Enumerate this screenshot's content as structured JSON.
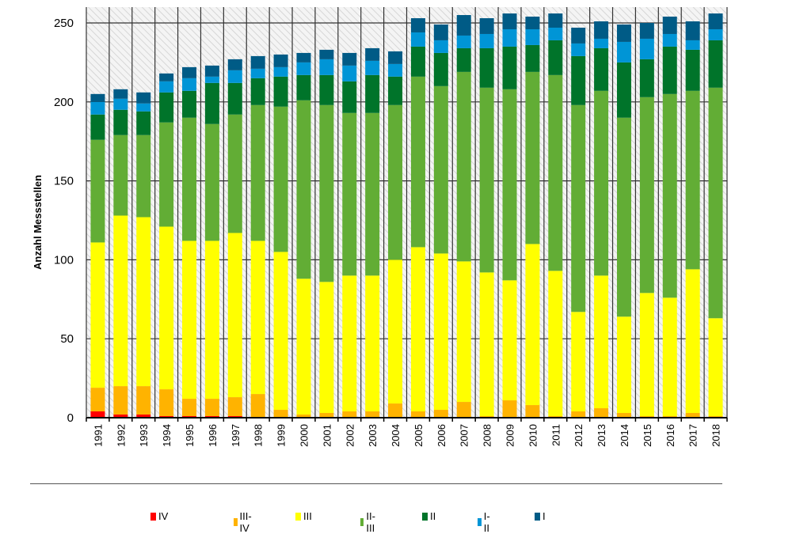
{
  "chart_data": {
    "type": "bar",
    "stacked": true,
    "title": "",
    "xlabel": "",
    "ylabel": "Anzahl Messstellen",
    "ylim": [
      0,
      260
    ],
    "yticks": [
      0,
      50,
      100,
      150,
      200,
      250
    ],
    "grid": true,
    "legend_position": "bottom",
    "categories": [
      "1991",
      "1992",
      "1993",
      "1994",
      "1995",
      "1996",
      "1997",
      "1998",
      "1999",
      "2000",
      "2001",
      "2002",
      "2003",
      "2004",
      "2005",
      "2006",
      "2007",
      "2008",
      "2009",
      "2010",
      "2011",
      "2012",
      "2013",
      "2014",
      "2015",
      "2016",
      "2017",
      "2018"
    ],
    "series": [
      {
        "name": "IV",
        "color": "#ff0000",
        "values": [
          4,
          2,
          2,
          1,
          1,
          1,
          1,
          0,
          0,
          0,
          0,
          0,
          0,
          0,
          0,
          0,
          0,
          0,
          0,
          0,
          0,
          0,
          0,
          0,
          0,
          0,
          0,
          0
        ]
      },
      {
        "name": "III-IV",
        "color": "#ffb300",
        "values": [
          15,
          18,
          18,
          17,
          11,
          11,
          12,
          15,
          5,
          2,
          3,
          4,
          4,
          9,
          4,
          5,
          10,
          1,
          11,
          8,
          1,
          4,
          6,
          3,
          1,
          1,
          3,
          1
        ]
      },
      {
        "name": "III",
        "color": "#ffff00",
        "values": [
          92,
          108,
          107,
          103,
          100,
          100,
          104,
          97,
          100,
          86,
          83,
          86,
          86,
          91,
          104,
          99,
          89,
          91,
          76,
          102,
          92,
          63,
          84,
          61,
          78,
          75,
          91,
          62
        ]
      },
      {
        "name": "II-III",
        "color": "#62ad35",
        "values": [
          65,
          51,
          52,
          66,
          78,
          74,
          75,
          86,
          92,
          113,
          112,
          103,
          103,
          98,
          108,
          106,
          120,
          117,
          121,
          109,
          124,
          131,
          117,
          126,
          124,
          129,
          113,
          146
        ]
      },
      {
        "name": "II",
        "color": "#00742a",
        "values": [
          16,
          16,
          15,
          19,
          17,
          26,
          20,
          17,
          19,
          16,
          19,
          20,
          24,
          18,
          19,
          21,
          15,
          25,
          27,
          17,
          22,
          31,
          27,
          35,
          24,
          30,
          26,
          30
        ]
      },
      {
        "name": "I-II",
        "color": "#0095d6",
        "values": [
          8,
          7,
          5,
          7,
          8,
          4,
          8,
          6,
          6,
          8,
          10,
          10,
          9,
          8,
          9,
          8,
          8,
          9,
          11,
          10,
          8,
          8,
          6,
          13,
          13,
          8,
          6,
          7
        ]
      },
      {
        "name": "I",
        "color": "#005b86",
        "values": [
          5,
          6,
          7,
          5,
          7,
          7,
          7,
          8,
          8,
          6,
          6,
          8,
          8,
          8,
          9,
          10,
          13,
          10,
          10,
          8,
          9,
          10,
          11,
          11,
          10,
          11,
          12,
          10
        ]
      }
    ]
  },
  "legend": [
    {
      "label": "IV",
      "color": "#ff0000"
    },
    {
      "label": "III-IV",
      "color": "#ffb300"
    },
    {
      "label": "III",
      "color": "#ffff00"
    },
    {
      "label": "II-III",
      "color": "#62ad35"
    },
    {
      "label": "II",
      "color": "#00742a"
    },
    {
      "label": "I-II",
      "color": "#0095d6"
    },
    {
      "label": "I",
      "color": "#005b86"
    }
  ]
}
